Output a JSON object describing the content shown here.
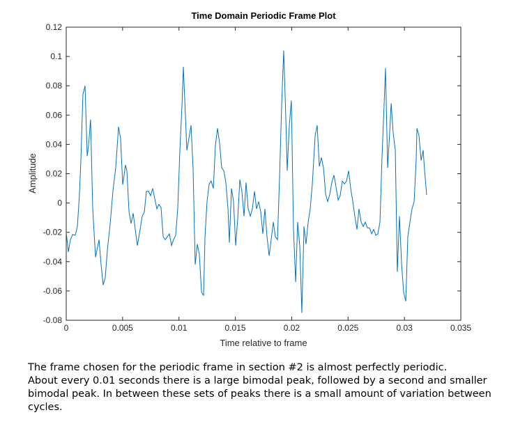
{
  "chart_data": {
    "type": "line",
    "title": "Time Domain Periodic Frame Plot",
    "xlabel": "Time relative to frame",
    "ylabel": "Amplitude",
    "xlim": [
      0,
      0.035
    ],
    "ylim": [
      -0.08,
      0.12
    ],
    "xticks": [
      0,
      0.005,
      0.01,
      0.015,
      0.02,
      0.025,
      0.03,
      0.035
    ],
    "yticks": [
      -0.08,
      -0.06,
      -0.04,
      -0.02,
      0,
      0.02,
      0.04,
      0.06,
      0.08,
      0.1,
      0.12
    ],
    "color": "#0072bd",
    "x": [
      0,
      0.00019,
      0.00037,
      0.00056,
      0.0008,
      0.00099,
      0.00117,
      0.0013,
      0.00148,
      0.00167,
      0.00186,
      0.00198,
      0.00216,
      0.00235,
      0.0026,
      0.00278,
      0.00291,
      0.00309,
      0.00328,
      0.00346,
      0.00365,
      0.0039,
      0.00414,
      0.00439,
      0.00464,
      0.00482,
      0.00501,
      0.00526,
      0.00538,
      0.00557,
      0.00575,
      0.00594,
      0.00612,
      0.00631,
      0.00649,
      0.00674,
      0.00693,
      0.00711,
      0.0073,
      0.00748,
      0.00767,
      0.00785,
      0.00804,
      0.00822,
      0.00841,
      0.0086,
      0.00878,
      0.00897,
      0.00915,
      0.00934,
      0.00952,
      0.00971,
      0.00989,
      0.01008,
      0.01027,
      0.01039,
      0.01057,
      0.0107,
      0.01088,
      0.01107,
      0.01125,
      0.01144,
      0.01163,
      0.01181,
      0.012,
      0.01218,
      0.01231,
      0.01249,
      0.01268,
      0.01286,
      0.01305,
      0.01323,
      0.01342,
      0.0136,
      0.01379,
      0.01398,
      0.01416,
      0.01435,
      0.01447,
      0.01466,
      0.01484,
      0.01503,
      0.01521,
      0.0154,
      0.01558,
      0.01577,
      0.01595,
      0.01614,
      0.01633,
      0.01651,
      0.0167,
      0.01688,
      0.01707,
      0.01725,
      0.01744,
      0.01762,
      0.01781,
      0.018,
      0.01818,
      0.01837,
      0.01855,
      0.01874,
      0.01892,
      0.01911,
      0.01929,
      0.01948,
      0.0196,
      0.01979,
      0.01997,
      0.02016,
      0.02035,
      0.02053,
      0.02072,
      0.0209,
      0.02109,
      0.02127,
      0.02146,
      0.02164,
      0.02183,
      0.02208,
      0.02226,
      0.02245,
      0.02263,
      0.02282,
      0.02301,
      0.02319,
      0.02338,
      0.02356,
      0.02375,
      0.02393,
      0.02412,
      0.0243,
      0.02449,
      0.02467,
      0.02486,
      0.02505,
      0.02523,
      0.02542,
      0.0256,
      0.02579,
      0.02597,
      0.02616,
      0.02634,
      0.02653,
      0.02672,
      0.0269,
      0.02709,
      0.02727,
      0.02746,
      0.02764,
      0.02783,
      0.02801,
      0.0282,
      0.02832,
      0.02851,
      0.02869,
      0.02882,
      0.029,
      0.02919,
      0.02937,
      0.02956,
      0.02975,
      0.02993,
      0.03012,
      0.0303,
      0.03049,
      0.03067,
      0.03086,
      0.03104,
      0.03111,
      0.03129,
      0.03148,
      0.03166,
      0.03179,
      0.03197
    ],
    "values": [
      -0.02,
      -0.0334,
      -0.025,
      -0.0215,
      -0.022,
      -0.016,
      0.0055,
      0.029,
      0.074,
      0.08,
      0.032,
      0.039,
      0.057,
      -0.004,
      -0.037,
      -0.03,
      -0.025,
      -0.042,
      -0.056,
      -0.051,
      -0.032,
      -0.014,
      0.008,
      0.024,
      0.052,
      0.044,
      0.0125,
      0.026,
      0.022,
      -0.006,
      -0.014,
      -0.007,
      -0.018,
      -0.029,
      -0.021,
      -0.009,
      -0.006,
      0.008,
      0.008,
      0.005,
      0.01,
      0.003,
      -0.004,
      -0.001,
      -0.003,
      -0.023,
      -0.025,
      -0.023,
      -0.021,
      -0.029,
      -0.025,
      -0.022,
      -0.004,
      0.036,
      0.067,
      0.093,
      0.06,
      0.036,
      0.044,
      0.053,
      0.024,
      -0.042,
      -0.028,
      -0.035,
      -0.061,
      -0.063,
      -0.023,
      0.001,
      0.013,
      0.015,
      0.01,
      0.039,
      0.051,
      0.041,
      0.024,
      0.022,
      0.014,
      -0.004,
      -0.027,
      0.01,
      0.001,
      -0.029,
      -0.011,
      0.016,
      0.008,
      -0.009,
      0.014,
      -0.004,
      -0.009,
      -0.004,
      0.008,
      -0.004,
      0.001,
      -0.006,
      -0.021,
      -0.004,
      -0.023,
      -0.036,
      -0.025,
      -0.013,
      -0.023,
      -0.025,
      0.017,
      0.067,
      0.104,
      0.058,
      0.022,
      0.053,
      0.07,
      -0.018,
      -0.054,
      -0.013,
      -0.03,
      -0.075,
      -0.016,
      -0.028,
      -0.013,
      -0.004,
      0.013,
      0.046,
      0.053,
      0.025,
      0.031,
      0.024,
      0.006,
      0.001,
      0.006,
      0.014,
      0.019,
      0.011,
      0.002,
      0.005,
      0.015,
      0.013,
      0.015,
      0.022,
      0.01,
      0.001,
      -0.009,
      -0.018,
      -0.004,
      -0.013,
      -0.016,
      -0.013,
      -0.017,
      -0.017,
      -0.021,
      -0.018,
      -0.022,
      -0.021,
      -0.013,
      0.031,
      0.068,
      0.092,
      0.024,
      0.048,
      0.068,
      0.048,
      0.036,
      -0.047,
      -0.009,
      -0.042,
      -0.061,
      -0.067,
      -0.023,
      -0.013,
      -0.004,
      0.001,
      0.029,
      0.051,
      0.046,
      0.029,
      0.036,
      0.022,
      0.0055
    ]
  },
  "caption": [
    "The frame chosen for the periodic frame in section #2 is almost perfectly periodic.",
    "About every 0.01 seconds there is a large bimodal peak, followed by a second and smaller",
    "bimodal peak. In between these sets of peaks there is a small amount of variation between",
    "cycles."
  ]
}
